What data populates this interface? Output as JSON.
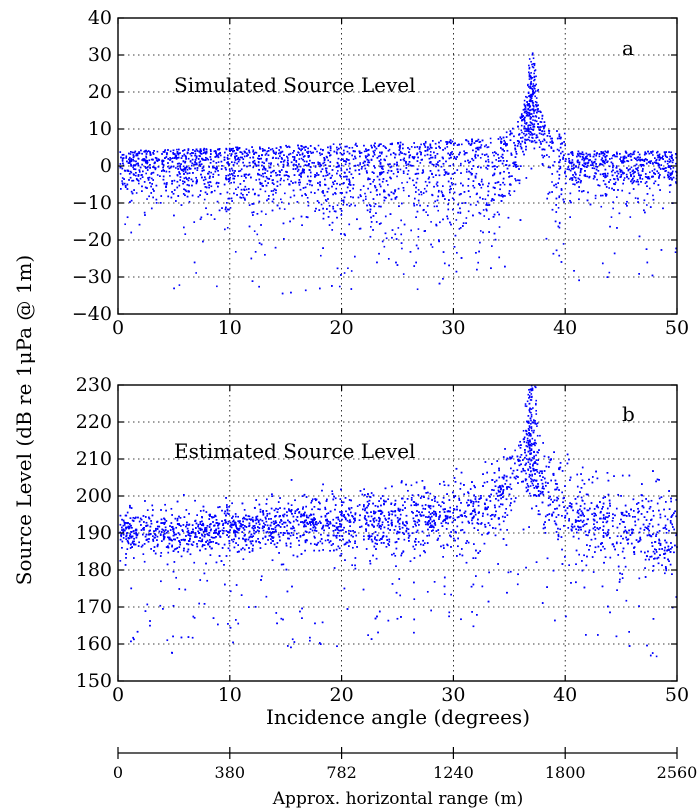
{
  "chart_data": [
    {
      "type": "scatter",
      "panel_id": "a",
      "annotation": "Simulated Source Level",
      "xlim": [
        0,
        50
      ],
      "ylim": [
        -40,
        40
      ],
      "xticks": [
        0,
        10,
        20,
        30,
        40,
        50
      ],
      "yticks": [
        -40,
        -30,
        -20,
        -10,
        0,
        10,
        20,
        30,
        40
      ],
      "grid": true,
      "color": "#0000ff",
      "shape": {
        "peak_x": 37,
        "peak_y": 33,
        "band_left_start": [
          3,
          -4
        ],
        "band_left_peak": [
          12,
          7
        ],
        "low_outliers_min": -34
      }
    },
    {
      "type": "scatter",
      "panel_id": "b",
      "annotation": "Estimated Source Level",
      "xlim": [
        0,
        50
      ],
      "ylim": [
        150,
        230
      ],
      "xticks": [
        0,
        10,
        20,
        30,
        40,
        50
      ],
      "yticks": [
        150,
        160,
        170,
        180,
        190,
        200,
        210,
        220,
        230
      ],
      "grid": true,
      "color": "#0000ff",
      "shape": {
        "peak_x": 37,
        "peak_y": 230,
        "band_left_start": [
          188,
          195
        ],
        "low_outliers_min": 159
      }
    }
  ],
  "labels": {
    "ylabel": "Source Level (dB re 1μPa @ 1m)",
    "xlabel": "Incidence angle (degrees)",
    "range_label": "Approx. horizontal range (m)",
    "range_ticks": [
      "0",
      "380",
      "782",
      "1240",
      "1800",
      "2560"
    ]
  }
}
